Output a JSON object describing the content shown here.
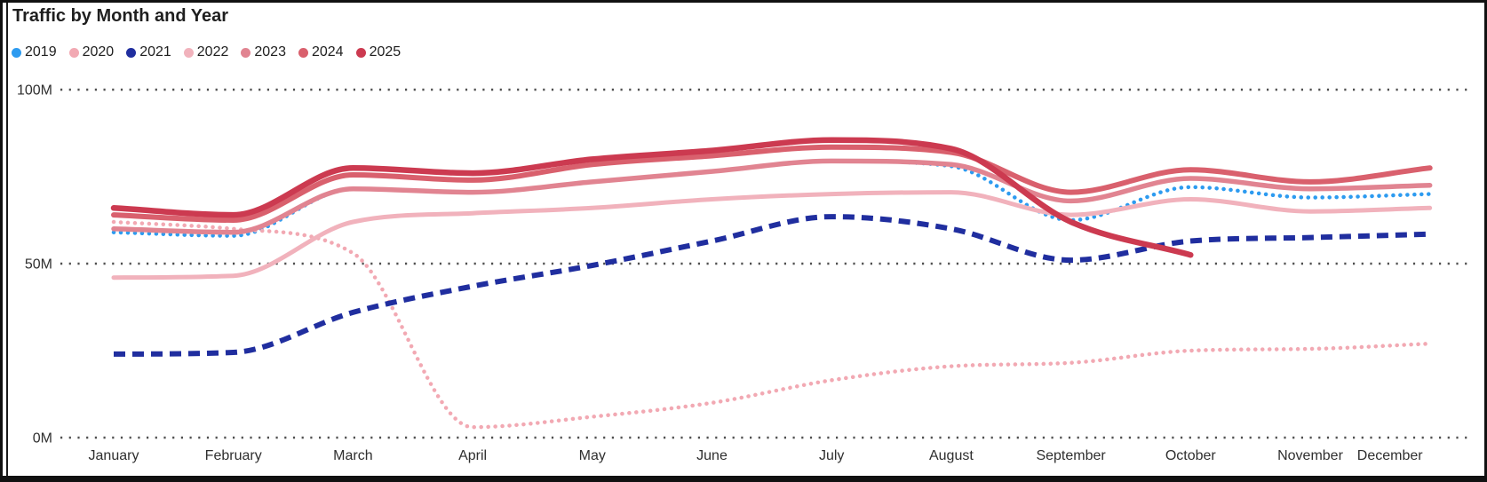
{
  "title": "Traffic by Month and Year",
  "background_color": "#ffffff",
  "frame_border_color": "#111111",
  "chart_data": {
    "type": "line",
    "title": "Traffic by Month and Year",
    "unit": "millions",
    "x_label": "",
    "y_label": "",
    "ylim": [
      0,
      100
    ],
    "grid": "horizontal-dotted",
    "legend_position": "top-left",
    "yticks": [
      {
        "label": "100M",
        "value": 100
      },
      {
        "label": "50M",
        "value": 50
      },
      {
        "label": "0M",
        "value": 0
      }
    ],
    "categories": [
      "January",
      "February",
      "March",
      "April",
      "May",
      "June",
      "July",
      "August",
      "September",
      "October",
      "November",
      "December"
    ],
    "series": [
      {
        "name": "2019",
        "color": "#2D9BF0",
        "style": "dotted",
        "width": 4.5,
        "values": [
          59,
          58,
          71.5,
          70.5,
          73.5,
          76.5,
          79.5,
          78,
          62.5,
          72,
          69,
          70
        ]
      },
      {
        "name": "2020",
        "color": "#F2A9B3",
        "style": "dotted",
        "width": 4.5,
        "values": [
          62,
          60,
          53,
          3,
          6,
          10,
          16.5,
          20.5,
          21.5,
          25,
          25.5,
          27
        ]
      },
      {
        "name": "2021",
        "color": "#202E9F",
        "style": "dashed",
        "width": 6,
        "values": [
          24,
          24.5,
          36,
          43.5,
          49.5,
          56.5,
          63.5,
          60,
          51,
          56.5,
          57.5,
          58.5
        ]
      },
      {
        "name": "2022",
        "color": "#F1B2BC",
        "style": "solid",
        "width": 5,
        "values": [
          46,
          46.5,
          62,
          64.5,
          66,
          68.5,
          70,
          70.5,
          64,
          68.5,
          65,
          66
        ]
      },
      {
        "name": "2023",
        "color": "#E18491",
        "style": "solid",
        "width": 5.5,
        "values": [
          60,
          59,
          71.5,
          70.5,
          73.5,
          76.5,
          79.5,
          78.5,
          68,
          74.5,
          71.5,
          72.5
        ]
      },
      {
        "name": "2024",
        "color": "#D9606D",
        "style": "solid",
        "width": 6,
        "values": [
          64,
          62.5,
          75.5,
          74,
          78.5,
          81,
          83.5,
          82,
          70.5,
          77,
          73.5,
          77.5
        ]
      },
      {
        "name": "2025",
        "color": "#CC3A50",
        "style": "solid",
        "width": 6.5,
        "values": [
          66,
          64,
          77.5,
          76,
          80,
          82.5,
          85.5,
          83,
          62,
          52.5,
          null,
          null
        ]
      }
    ]
  }
}
